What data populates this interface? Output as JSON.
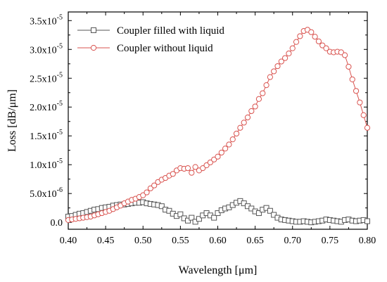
{
  "chart_data": {
    "type": "line",
    "xlabel": "Wavelength [μm]",
    "ylabel": "Loss [dB/μm]",
    "xlim": [
      0.4,
      0.8
    ],
    "ylim": [
      -1.2e-06,
      3.65e-05
    ],
    "x_ticks": [
      0.4,
      0.45,
      0.5,
      0.55,
      0.6,
      0.65,
      0.7,
      0.75,
      0.8
    ],
    "x_tick_labels": [
      "0.40",
      "0.45",
      "0.50",
      "0.55",
      "0.60",
      "0.65",
      "0.70",
      "0.75",
      "0.80"
    ],
    "y_ticks": [
      {
        "value": 0,
        "mantissa": "0.0",
        "exp": ""
      },
      {
        "value": 5e-06,
        "mantissa": "5.0x10",
        "exp": "-6"
      },
      {
        "value": 1e-05,
        "mantissa": "1.0x10",
        "exp": "-5"
      },
      {
        "value": 1.5e-05,
        "mantissa": "1.5x10",
        "exp": "-5"
      },
      {
        "value": 2e-05,
        "mantissa": "2.0x10",
        "exp": "-5"
      },
      {
        "value": 2.5e-05,
        "mantissa": "2.5x10",
        "exp": "-5"
      },
      {
        "value": 3e-05,
        "mantissa": "3.0x10",
        "exp": "-5"
      },
      {
        "value": 3.5e-05,
        "mantissa": "3.5x10",
        "exp": "-5"
      }
    ],
    "legend_position": "top-left",
    "x": [
      0.4,
      0.405,
      0.41,
      0.415,
      0.42,
      0.425,
      0.43,
      0.435,
      0.44,
      0.445,
      0.45,
      0.455,
      0.46,
      0.465,
      0.47,
      0.475,
      0.48,
      0.485,
      0.49,
      0.495,
      0.5,
      0.505,
      0.51,
      0.515,
      0.52,
      0.525,
      0.53,
      0.535,
      0.54,
      0.545,
      0.55,
      0.555,
      0.56,
      0.565,
      0.57,
      0.575,
      0.58,
      0.585,
      0.59,
      0.595,
      0.6,
      0.605,
      0.61,
      0.615,
      0.62,
      0.625,
      0.63,
      0.635,
      0.64,
      0.645,
      0.65,
      0.655,
      0.66,
      0.665,
      0.67,
      0.675,
      0.68,
      0.685,
      0.69,
      0.695,
      0.7,
      0.705,
      0.71,
      0.715,
      0.72,
      0.725,
      0.73,
      0.735,
      0.74,
      0.745,
      0.75,
      0.755,
      0.76,
      0.765,
      0.77,
      0.775,
      0.78,
      0.785,
      0.79,
      0.795,
      0.8
    ],
    "series": [
      {
        "name": "Coupler filled with liquid",
        "color": "#555555",
        "marker": "square",
        "values": [
          1e-06,
          1.1e-06,
          1.3e-06,
          1.5e-06,
          1.6e-06,
          1.8e-06,
          2e-06,
          2.2e-06,
          2.3e-06,
          2.5e-06,
          2.6e-06,
          2.7e-06,
          2.9e-06,
          3e-06,
          3.1e-06,
          3.1e-06,
          3.2e-06,
          3.3e-06,
          3.4e-06,
          3.4e-06,
          3.5e-06,
          3.3e-06,
          3.2e-06,
          3.1e-06,
          3e-06,
          2.8e-06,
          2.2e-06,
          2e-06,
          1.5e-06,
          1.1e-06,
          1.4e-06,
          7e-07,
          3e-07,
          8e-07,
          1e-07,
          6e-07,
          1.2e-06,
          1.6e-06,
          1.2e-06,
          8e-07,
          1.6e-06,
          2.1e-06,
          2.4e-06,
          2.6e-06,
          3e-06,
          3.4e-06,
          3.7e-06,
          3.3e-06,
          2.8e-06,
          2.4e-06,
          1.9e-06,
          1.6e-06,
          2.2e-06,
          2.5e-06,
          2e-06,
          1.3e-06,
          8e-07,
          5e-07,
          4e-07,
          3e-07,
          2e-07,
          1e-07,
          1e-07,
          2e-07,
          1e-07,
          0.0,
          1e-07,
          2e-07,
          3e-07,
          5e-07,
          4e-07,
          3e-07,
          2e-07,
          1e-07,
          4e-07,
          5e-07,
          3e-07,
          2e-07,
          3e-07,
          4e-07,
          2e-07
        ]
      },
      {
        "name": "Coupler without liquid",
        "color": "#d9534f",
        "marker": "circle",
        "values": [
          4e-07,
          5e-07,
          6e-07,
          7e-07,
          8e-07,
          9e-07,
          1e-06,
          1.2e-06,
          1.4e-06,
          1.6e-06,
          1.8e-06,
          2e-06,
          2.3e-06,
          2.6e-06,
          2.9e-06,
          3.3e-06,
          3.6e-06,
          3.9e-06,
          4.1e-06,
          4.4e-06,
          4.7e-06,
          5.2e-06,
          5.9e-06,
          6.4e-06,
          7e-06,
          7.4e-06,
          7.7e-06,
          8.1e-06,
          8.4e-06,
          9e-06,
          9.4e-06,
          9.3e-06,
          9.4e-06,
          8.6e-06,
          9.6e-06,
          9e-06,
          9.4e-06,
          9.9e-06,
          1.04e-05,
          1.09e-05,
          1.14e-05,
          1.21e-05,
          1.28e-05,
          1.35e-05,
          1.44e-05,
          1.54e-05,
          1.64e-05,
          1.73e-05,
          1.82e-05,
          1.93e-05,
          2.01e-05,
          2.14e-05,
          2.24e-05,
          2.38e-05,
          2.52e-05,
          2.62e-05,
          2.71e-05,
          2.79e-05,
          2.85e-05,
          2.93e-05,
          3.02e-05,
          3.13e-05,
          3.23e-05,
          3.32e-05,
          3.34e-05,
          3.3e-05,
          3.22e-05,
          3.14e-05,
          3.07e-05,
          3.02e-05,
          2.96e-05,
          2.95e-05,
          2.96e-05,
          2.95e-05,
          2.9e-05,
          2.7e-05,
          2.48e-05,
          2.28e-05,
          2.08e-05,
          1.86e-05,
          1.64e-05
        ]
      }
    ]
  }
}
